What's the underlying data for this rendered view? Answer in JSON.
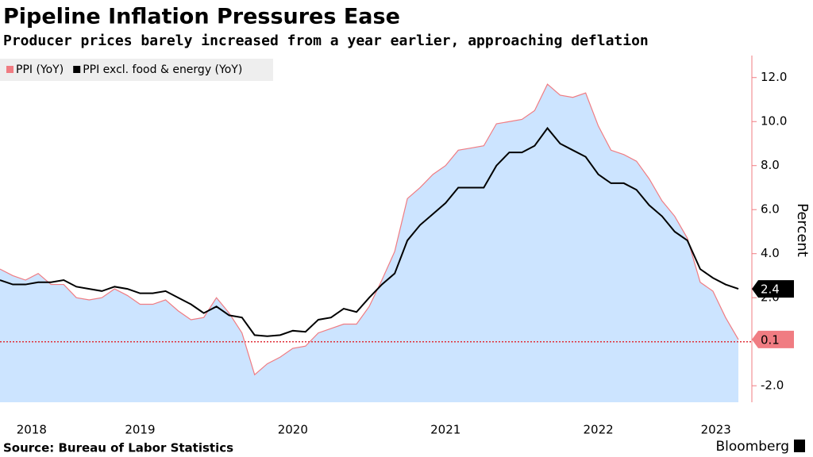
{
  "chart_data": {
    "type": "area_line",
    "title": "Pipeline Inflation Pressures Ease",
    "subtitle": "Producer prices barely increased from a year earlier, approaching deflation",
    "y_label": "Percent",
    "source": "Source: Bureau of Labor Statistics",
    "brand": "Bloomberg",
    "x": [
      2018.583,
      2018.667,
      2018.75,
      2018.833,
      2018.917,
      2019.0,
      2019.083,
      2019.167,
      2019.25,
      2019.333,
      2019.417,
      2019.5,
      2019.583,
      2019.667,
      2019.75,
      2019.833,
      2019.917,
      2020.0,
      2020.083,
      2020.167,
      2020.25,
      2020.333,
      2020.417,
      2020.5,
      2020.583,
      2020.667,
      2020.75,
      2020.833,
      2020.917,
      2021.0,
      2021.083,
      2021.167,
      2021.25,
      2021.333,
      2021.417,
      2021.5,
      2021.583,
      2021.667,
      2021.75,
      2021.833,
      2021.917,
      2022.0,
      2022.083,
      2022.167,
      2022.25,
      2022.333,
      2022.417,
      2022.5,
      2022.583,
      2022.667,
      2022.75,
      2022.833,
      2022.917,
      2023.0,
      2023.083,
      2023.167,
      2023.25,
      2023.333,
      2023.417
    ],
    "series": [
      {
        "name": "PPI (YoY)",
        "color": "#f07c82",
        "fill": "#cce4ff",
        "values": [
          3.3,
          3.0,
          2.8,
          3.1,
          2.6,
          2.6,
          2.0,
          1.9,
          2.0,
          2.4,
          2.1,
          1.7,
          1.7,
          1.9,
          1.4,
          1.0,
          1.1,
          2.0,
          1.3,
          0.4,
          -1.5,
          -1.0,
          -0.7,
          -0.3,
          -0.2,
          0.4,
          0.6,
          0.8,
          0.8,
          1.6,
          2.8,
          4.1,
          6.5,
          7.0,
          7.6,
          8.0,
          8.7,
          8.8,
          8.9,
          9.9,
          10.0,
          10.1,
          10.5,
          11.7,
          11.2,
          11.1,
          11.3,
          9.8,
          8.7,
          8.5,
          8.2,
          7.4,
          6.4,
          5.7,
          4.7,
          2.7,
          2.3,
          1.1,
          0.1
        ]
      },
      {
        "name": "PPI excl. food & energy (YoY)",
        "color": "#000000",
        "values": [
          2.8,
          2.6,
          2.6,
          2.7,
          2.7,
          2.8,
          2.5,
          2.4,
          2.3,
          2.5,
          2.4,
          2.2,
          2.2,
          2.3,
          2.0,
          1.7,
          1.3,
          1.6,
          1.2,
          1.1,
          0.3,
          0.25,
          0.3,
          0.5,
          0.45,
          1.0,
          1.1,
          1.5,
          1.35,
          2.0,
          2.6,
          3.1,
          4.6,
          5.3,
          5.8,
          6.3,
          7.0,
          7.0,
          7.0,
          8.0,
          8.6,
          8.6,
          8.9,
          9.7,
          9.0,
          8.7,
          8.4,
          7.6,
          7.2,
          7.2,
          6.9,
          6.2,
          5.7,
          5.0,
          4.6,
          3.3,
          2.9,
          2.6,
          2.4
        ]
      }
    ],
    "xlim": [
      2018.583,
      2023.5
    ],
    "xticks": [
      {
        "value": 2018.79,
        "label": "2018"
      },
      {
        "value": 2019.5,
        "label": "2019"
      },
      {
        "value": 2020.5,
        "label": "2020"
      },
      {
        "value": 2021.5,
        "label": "2021"
      },
      {
        "value": 2022.5,
        "label": "2022"
      },
      {
        "value": 2023.27,
        "label": "2023"
      }
    ],
    "ylim": [
      -2.75,
      13
    ],
    "yticks": [
      {
        "value": -2,
        "label": "-2.0"
      },
      {
        "value": 2,
        "label": "2.0"
      },
      {
        "value": 4,
        "label": "4.0"
      },
      {
        "value": 6,
        "label": "6.0"
      },
      {
        "value": 8,
        "label": "8.0"
      },
      {
        "value": 10,
        "label": "10.0"
      },
      {
        "value": 12,
        "label": "12.0"
      }
    ],
    "zero_line": true,
    "legend": "top-left"
  }
}
